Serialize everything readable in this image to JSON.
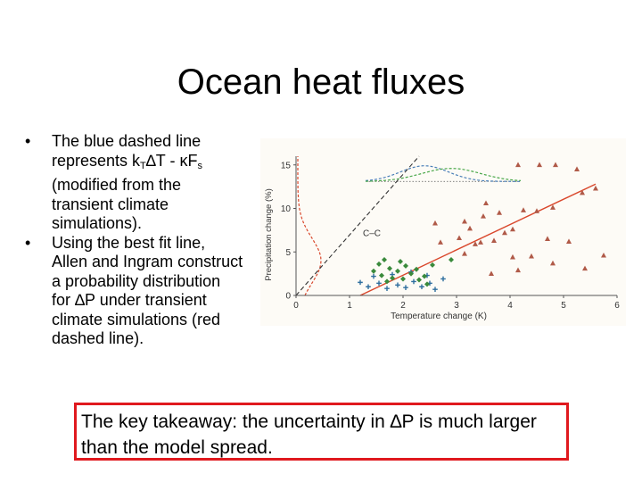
{
  "slide": {
    "title": "Ocean heat fluxes",
    "bullet_mark": "•",
    "bullet1": {
      "prefix": "The blue dashed line represents k",
      "sub1": "T",
      "mid": "∆T - κF",
      "sub2": "s",
      "suffix": " (modified from the transient climate simulations)."
    },
    "bullet2": "Using the best fit line, Allen and Ingram construct a probability distribution for ∆P under transient climate simulations (red dashed line).",
    "takeaway": "The key takeaway: the uncertainty in ∆P is much larger than the model spread."
  },
  "chart_data": {
    "type": "scatter",
    "xlabel": "Temperature change (K)",
    "ylabel": "Precipitation change (%)",
    "xlim": [
      0,
      6
    ],
    "ylim": [
      0,
      16
    ],
    "x_ticks": [
      "0",
      "1",
      "2",
      "3",
      "4",
      "5",
      "6"
    ],
    "y_ticks": [
      "0",
      "5",
      "10",
      "15"
    ],
    "annotation": "C–C",
    "colors": {
      "triangles": "#b05a48",
      "crosses": "#2e6e9e",
      "diamonds": "#3a8a3c",
      "fit_line": "#d9472b",
      "cc_line": "#333333",
      "blue_dashed": "#4a7fb8",
      "green_dashed": "#4aa84a",
      "red_dashed": "#d9472b"
    },
    "series": [
      {
        "marker": "triangle",
        "points": [
          [
            4.15,
            15
          ],
          [
            4.55,
            15
          ],
          [
            4.85,
            15
          ],
          [
            5.25,
            14.5
          ],
          [
            3.55,
            10.6
          ],
          [
            3.8,
            9.5
          ],
          [
            4.25,
            9.8
          ],
          [
            4.5,
            9.7
          ],
          [
            4.8,
            10.1
          ],
          [
            5.35,
            11.8
          ],
          [
            5.6,
            12.3
          ],
          [
            2.6,
            8.3
          ],
          [
            3.15,
            8.5
          ],
          [
            3.5,
            9.1
          ],
          [
            3.25,
            7.7
          ],
          [
            3.05,
            6.6
          ],
          [
            3.45,
            6.1
          ],
          [
            3.7,
            6.3
          ],
          [
            3.9,
            7.2
          ],
          [
            4.05,
            7.6
          ],
          [
            4.4,
            4.5
          ],
          [
            4.05,
            4.4
          ],
          [
            3.15,
            4.8
          ],
          [
            3.35,
            5.9
          ],
          [
            2.7,
            6.1
          ],
          [
            4.8,
            3.7
          ],
          [
            4.15,
            2.9
          ],
          [
            3.65,
            2.5
          ],
          [
            5.75,
            4.6
          ],
          [
            5.4,
            3.1
          ],
          [
            5.1,
            6.2
          ],
          [
            4.7,
            6.5
          ]
        ]
      },
      {
        "marker": "cross",
        "points": [
          [
            1.2,
            1.5
          ],
          [
            1.35,
            1
          ],
          [
            1.55,
            1.4
          ],
          [
            1.7,
            0.8
          ],
          [
            1.9,
            1.2
          ],
          [
            2.05,
            0.9
          ],
          [
            2.2,
            1.6
          ],
          [
            2.35,
            1
          ],
          [
            2.5,
            1.4
          ],
          [
            2.6,
            0.7
          ],
          [
            2.75,
            1.9
          ],
          [
            1.45,
            2.2
          ],
          [
            1.8,
            2.4
          ],
          [
            2.15,
            2.7
          ],
          [
            2.45,
            2.3
          ]
        ]
      },
      {
        "marker": "diamond",
        "points": [
          [
            1.55,
            3.6
          ],
          [
            1.75,
            3.1
          ],
          [
            1.9,
            2.8
          ],
          [
            2.05,
            3.4
          ],
          [
            2.15,
            2.5
          ],
          [
            2.25,
            3
          ],
          [
            2.4,
            2.2
          ],
          [
            1.45,
            2.8
          ],
          [
            1.6,
            2.3
          ],
          [
            1.8,
            2
          ],
          [
            2,
            1.9
          ],
          [
            2.3,
            1.8
          ],
          [
            1.7,
            1.6
          ],
          [
            2.55,
            3.5
          ],
          [
            2.9,
            4.1
          ],
          [
            1.95,
            3.9
          ],
          [
            2.45,
            1.3
          ],
          [
            1.65,
            4.1
          ]
        ]
      }
    ],
    "best_fit": [
      [
        1.2,
        0
      ],
      [
        5.6,
        12.8
      ]
    ],
    "cc_line": [
      [
        0,
        0
      ],
      [
        2.3,
        16
      ]
    ],
    "blue_dashed_baseline": {
      "x": [
        1.3,
        4.2
      ],
      "y": 13
    },
    "horizontal_dotted": {
      "x": [
        1.3,
        4.2
      ],
      "y": 13.1
    }
  }
}
